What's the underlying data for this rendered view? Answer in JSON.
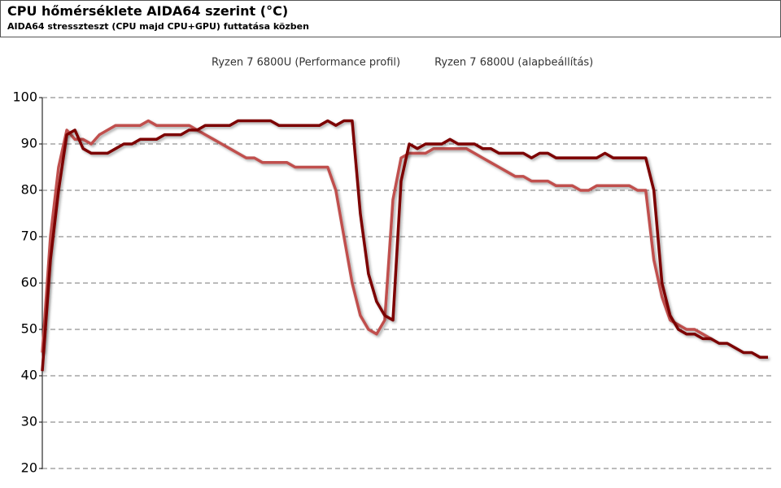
{
  "chart_data": {
    "type": "line",
    "title": "CPU hőmérséklete AIDA64 szerint (°C)",
    "subtitle": "AIDA64 stresszteszt (CPU majd CPU+GPU) futtatása közben",
    "ylim": [
      20,
      100
    ],
    "yticks": [
      20,
      30,
      40,
      50,
      60,
      70,
      80,
      90,
      100
    ],
    "grid": true,
    "legend": "top",
    "series": [
      {
        "name": "Ryzen 7 6800U (Performance profil)",
        "color": "#c0504d",
        "values": [
          45,
          70,
          85,
          93,
          91,
          91,
          90,
          92,
          93,
          94,
          94,
          94,
          94,
          95,
          94,
          94,
          94,
          94,
          94,
          93,
          92,
          91,
          90,
          89,
          88,
          87,
          87,
          86,
          86,
          86,
          86,
          85,
          85,
          85,
          85,
          85,
          80,
          70,
          60,
          53,
          50,
          49,
          52,
          78,
          87,
          88,
          88,
          88,
          89,
          89,
          89,
          89,
          89,
          88,
          87,
          86,
          85,
          84,
          83,
          83,
          82,
          82,
          82,
          81,
          81,
          81,
          80,
          80,
          81,
          81,
          81,
          81,
          81,
          80,
          80,
          65,
          57,
          52,
          51,
          50,
          50,
          49,
          48,
          null,
          null,
          null,
          null,
          null,
          null,
          null
        ]
      },
      {
        "name": "Ryzen 7 6800U (alapbeállítás)",
        "color": "#7b0000",
        "values": [
          41,
          65,
          80,
          92,
          93,
          89,
          88,
          88,
          88,
          89,
          90,
          90,
          91,
          91,
          91,
          92,
          92,
          92,
          93,
          93,
          94,
          94,
          94,
          94,
          95,
          95,
          95,
          95,
          95,
          94,
          94,
          94,
          94,
          94,
          94,
          95,
          94,
          95,
          95,
          75,
          62,
          56,
          53,
          52,
          82,
          90,
          89,
          90,
          90,
          90,
          91,
          90,
          90,
          90,
          89,
          89,
          88,
          88,
          88,
          88,
          87,
          88,
          88,
          87,
          87,
          87,
          87,
          87,
          87,
          88,
          87,
          87,
          87,
          87,
          87,
          80,
          60,
          53,
          50,
          49,
          49,
          48,
          48,
          47,
          47,
          46,
          45,
          45,
          44,
          44
        ]
      }
    ]
  }
}
